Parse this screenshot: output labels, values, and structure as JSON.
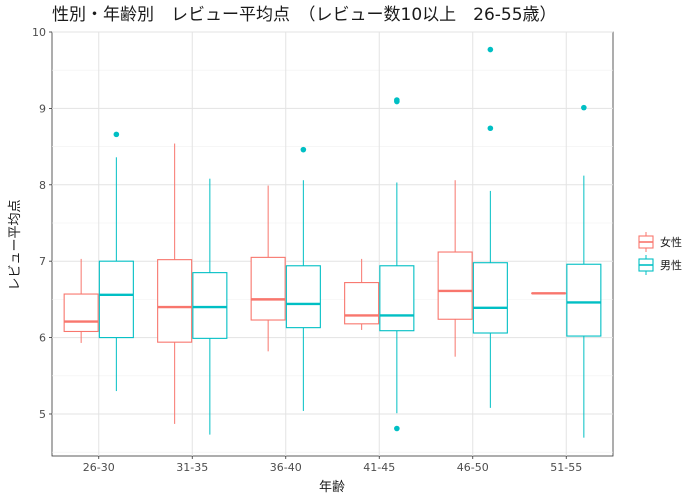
{
  "chart_data": {
    "type": "boxplot",
    "title": "性別・年齢別　レビュー平均点　（レビュー数10以上　26-55歳）",
    "xlabel": "年齢",
    "ylabel": "レビュー平均点",
    "categories": [
      "26-30",
      "31-35",
      "36-40",
      "41-45",
      "46-50",
      "51-55"
    ],
    "ylim": [
      4.45,
      10.0
    ],
    "yticks": [
      5,
      6,
      7,
      8,
      9,
      10
    ],
    "grid": true,
    "legend_position": "right",
    "series": [
      {
        "name": "女性",
        "color": "#F8766D",
        "boxes": [
          {
            "category": "26-30",
            "min": 5.93,
            "q1": 6.08,
            "median": 6.21,
            "q3": 6.57,
            "max": 7.03,
            "outliers": []
          },
          {
            "category": "31-35",
            "min": 4.87,
            "q1": 5.94,
            "median": 6.4,
            "q3": 7.02,
            "max": 8.54,
            "outliers": []
          },
          {
            "category": "36-40",
            "min": 5.82,
            "q1": 6.23,
            "median": 6.5,
            "q3": 7.05,
            "max": 7.99,
            "outliers": []
          },
          {
            "category": "41-45",
            "min": 6.1,
            "q1": 6.18,
            "median": 6.29,
            "q3": 6.72,
            "max": 7.03,
            "outliers": []
          },
          {
            "category": "46-50",
            "min": 5.75,
            "q1": 6.24,
            "median": 6.61,
            "q3": 7.12,
            "max": 8.06,
            "outliers": []
          },
          {
            "category": "51-55",
            "min": 6.58,
            "q1": 6.58,
            "median": 6.58,
            "q3": 6.58,
            "max": 6.58,
            "outliers": []
          }
        ]
      },
      {
        "name": "男性",
        "color": "#00BFC4",
        "boxes": [
          {
            "category": "26-30",
            "min": 5.3,
            "q1": 6.0,
            "median": 6.56,
            "q3": 7.0,
            "max": 8.36,
            "outliers": [
              8.66
            ]
          },
          {
            "category": "31-35",
            "min": 4.73,
            "q1": 5.99,
            "median": 6.4,
            "q3": 6.85,
            "max": 8.08,
            "outliers": []
          },
          {
            "category": "36-40",
            "min": 5.04,
            "q1": 6.13,
            "median": 6.44,
            "q3": 6.94,
            "max": 8.06,
            "outliers": [
              8.46
            ]
          },
          {
            "category": "41-45",
            "min": 5.01,
            "q1": 6.09,
            "median": 6.29,
            "q3": 6.94,
            "max": 8.03,
            "outliers": [
              9.09,
              9.11,
              4.81
            ]
          },
          {
            "category": "46-50",
            "min": 5.08,
            "q1": 6.06,
            "median": 6.39,
            "q3": 6.98,
            "max": 7.92,
            "outliers": [
              9.77,
              8.74
            ]
          },
          {
            "category": "51-55",
            "min": 4.69,
            "q1": 6.02,
            "median": 6.46,
            "q3": 6.96,
            "max": 8.12,
            "outliers": [
              9.01
            ]
          }
        ]
      }
    ]
  }
}
